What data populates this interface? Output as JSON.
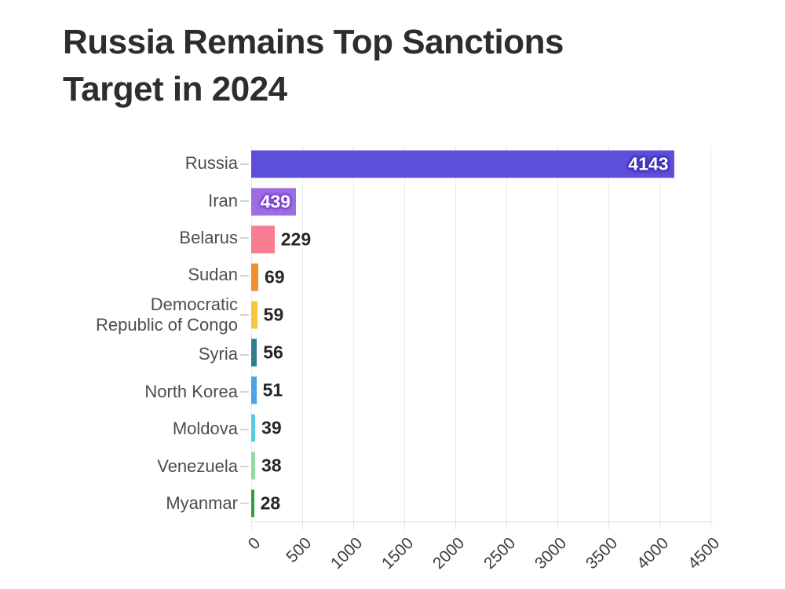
{
  "title": {
    "line1": "Russia Remains Top Sanctions",
    "line2": "Target in 2024"
  },
  "chart_data": {
    "type": "bar",
    "orientation": "horizontal",
    "title": "Russia Remains Top Sanctions Target in 2024",
    "xlabel": "",
    "ylabel": "",
    "xlim": [
      0,
      4500
    ],
    "x_ticks": [
      0,
      500,
      1000,
      1500,
      2000,
      2500,
      3000,
      3500,
      4000,
      4500
    ],
    "x_tick_rotation_deg": 45,
    "grid": "vertical-gridlines-on",
    "legend": "none",
    "categories": [
      "Russia",
      "Iran",
      "Belarus",
      "Sudan",
      "Democratic Republic of Congo",
      "Syria",
      "North Korea",
      "Moldova",
      "Venezuela",
      "Myanmar"
    ],
    "values": [
      4143,
      439,
      229,
      69,
      59,
      56,
      51,
      39,
      38,
      28
    ],
    "bars": [
      {
        "label": "Russia",
        "display_label": "Russia",
        "value": 4143,
        "value_label": "4143",
        "color": "#5E4FDB",
        "value_label_position": "inside",
        "value_label_color": "#ffffff",
        "glow": "#3a2eb8"
      },
      {
        "label": "Iran",
        "display_label": "Iran",
        "value": 439,
        "value_label": "439",
        "color": "#9C6EE2",
        "value_label_position": "inside",
        "value_label_color": "#ffffff",
        "glow": "#7b3fd1"
      },
      {
        "label": "Belarus",
        "display_label": "Belarus",
        "value": 229,
        "value_label": "229",
        "color": "#F87C92",
        "value_label_position": "outside",
        "value_label_color": "#262626"
      },
      {
        "label": "Sudan",
        "display_label": "Sudan",
        "value": 69,
        "value_label": "69",
        "color": "#F08F2E",
        "value_label_position": "outside",
        "value_label_color": "#262626"
      },
      {
        "label": "Democratic Republic of Congo",
        "display_label": "Democratic\nRepublic of Congo",
        "value": 59,
        "value_label": "59",
        "color": "#F6C73E",
        "value_label_position": "outside",
        "value_label_color": "#262626"
      },
      {
        "label": "Syria",
        "display_label": "Syria",
        "value": 56,
        "value_label": "56",
        "color": "#2F7E8E",
        "value_label_position": "outside",
        "value_label_color": "#262626"
      },
      {
        "label": "North Korea",
        "display_label": "North Korea",
        "value": 51,
        "value_label": "51",
        "color": "#4AA3E2",
        "value_label_position": "outside",
        "value_label_color": "#262626"
      },
      {
        "label": "Moldova",
        "display_label": "Moldova",
        "value": 39,
        "value_label": "39",
        "color": "#56CCE4",
        "value_label_position": "outside",
        "value_label_color": "#262626"
      },
      {
        "label": "Venezuela",
        "display_label": "Venezuela",
        "value": 38,
        "value_label": "38",
        "color": "#91DAA3",
        "value_label_position": "outside",
        "value_label_color": "#262626"
      },
      {
        "label": "Myanmar",
        "display_label": "Myanmar",
        "value": 28,
        "value_label": "28",
        "color": "#2FA039",
        "value_label_position": "outside",
        "value_label_color": "#262626"
      }
    ],
    "colors": {
      "background": "#ffffff",
      "gridline": "#eaeaea",
      "axis_line": "#dcdcdc",
      "title_text": "#2d2d2d",
      "category_text": "#4d4d4d",
      "tick_text": "#3b3b3b"
    }
  }
}
